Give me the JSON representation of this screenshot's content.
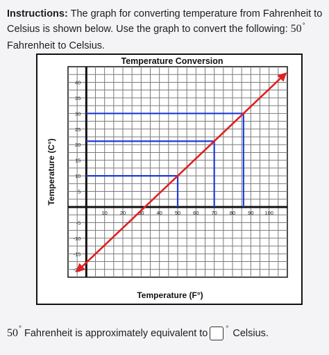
{
  "instructions": {
    "lead": "Instructions:",
    "text_before": "The graph for converting temperature from Fahrenheit to Celsius is shown below. Use the graph to convert the following:",
    "value": "50",
    "degree_symbol": "°",
    "text_after": "Fahrenheit to Celsius."
  },
  "answer": {
    "value": "50",
    "degree_symbol": "°",
    "text_before": "Fahrenheit is approximately equivalent to",
    "text_after": "Celsius."
  },
  "colors": {
    "grid": "#7a7a7a",
    "axis": "#111111",
    "guide": "#1b3cd6",
    "line": "#e02020"
  },
  "chart_data": {
    "type": "line",
    "title": "Temperature Conversion",
    "xlabel": "Temperature (F°)",
    "ylabel": "Temperature (C°)",
    "xlim": [
      -10,
      110
    ],
    "ylim": [
      -22.5,
      45
    ],
    "grid": true,
    "x_ticks": [
      10,
      20,
      30,
      40,
      50,
      60,
      70,
      80,
      90,
      100
    ],
    "x_tick_labels": [
      "10",
      "20",
      "30",
      "40",
      "50",
      "60",
      "70",
      "80",
      "90",
      "100"
    ],
    "y_ticks": [
      40,
      35,
      30,
      25,
      20,
      15,
      10,
      5,
      -5,
      -10,
      -15,
      -20
    ],
    "y_tick_labels": [
      "40",
      "35",
      "30",
      "25",
      "20",
      "15",
      "10",
      "5",
      "-5",
      "-10",
      "-15",
      "-20"
    ],
    "series": [
      {
        "x": [
          -5,
          109
        ],
        "y": [
          -20.6,
          42.8
        ],
        "style": "line-with-arrows"
      }
    ],
    "guides": [
      {
        "x": 50,
        "y": 10
      },
      {
        "x": 70,
        "y": 21.1
      },
      {
        "x": 86,
        "y": 30
      }
    ]
  }
}
